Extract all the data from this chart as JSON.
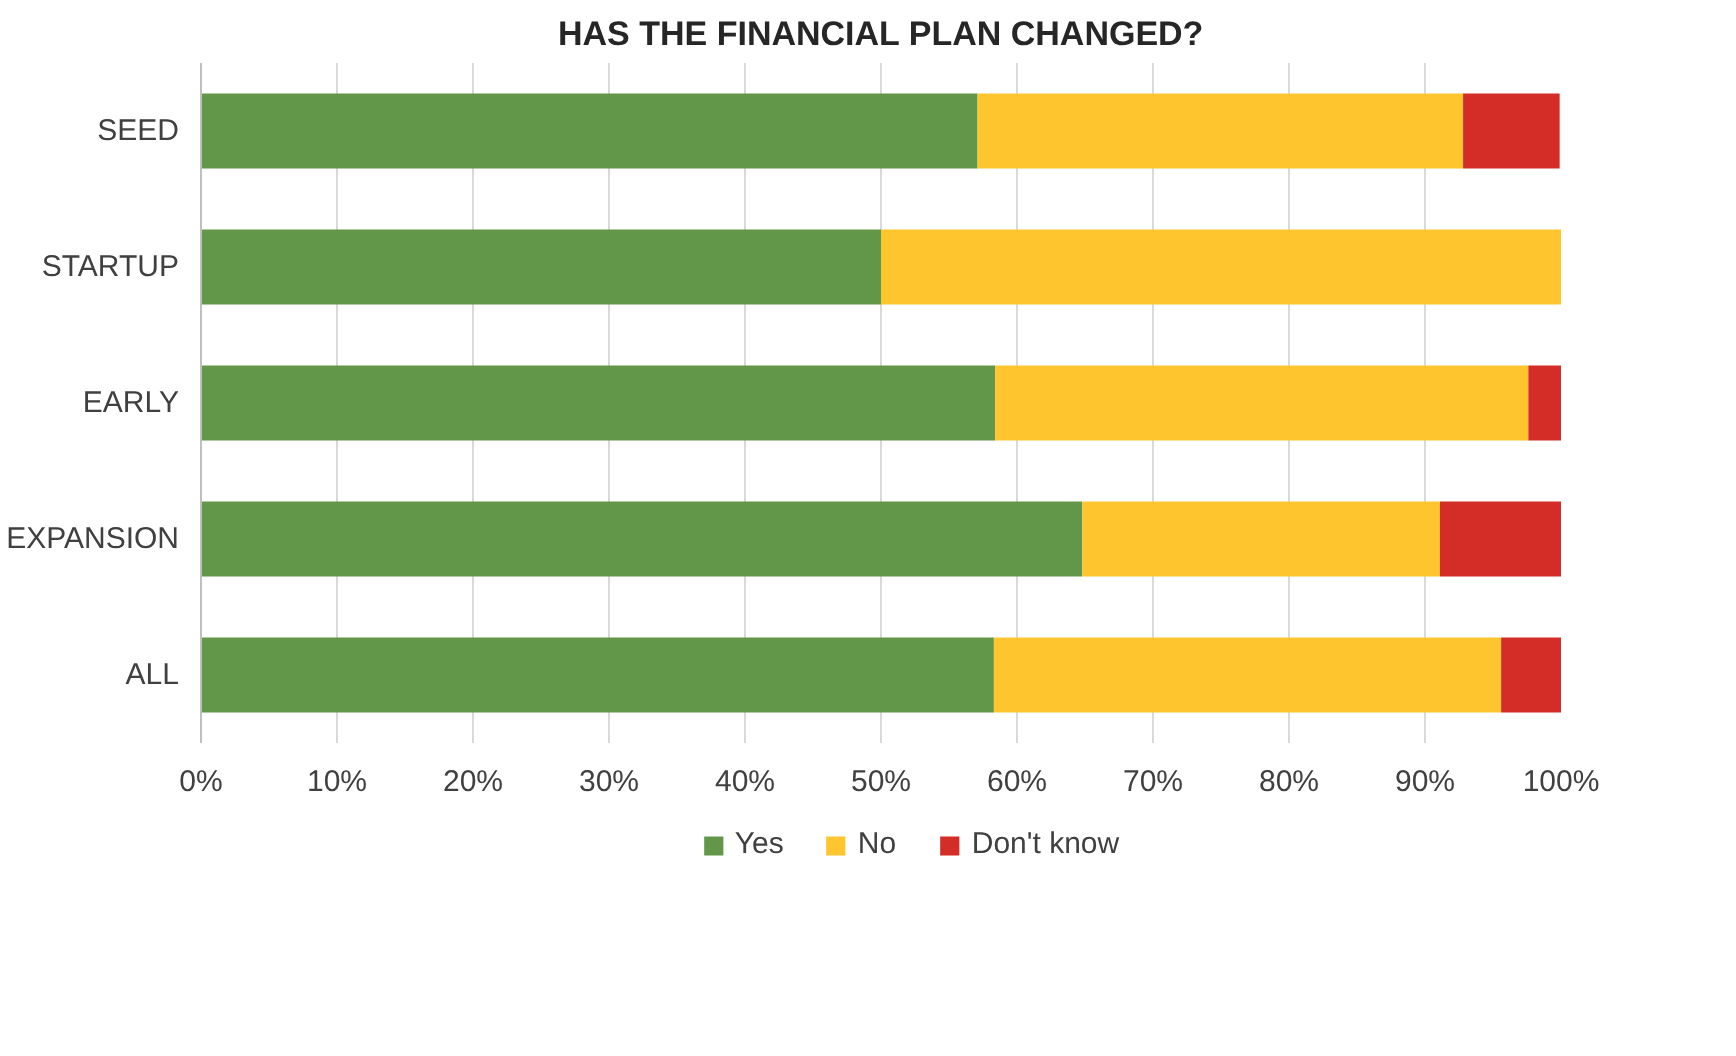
{
  "chart_data": {
    "type": "bar",
    "orientation": "horizontal",
    "stacked": true,
    "title": "HAS THE FINANCIAL PLAN CHANGED?",
    "categories": [
      "SEED",
      "STARTUP",
      "EARLY",
      "EXPANSION",
      "ALL"
    ],
    "series": [
      {
        "name": "Yes",
        "color": "#629749",
        "values": [
          57.1,
          50.0,
          58.4,
          64.8,
          58.3
        ]
      },
      {
        "name": "No",
        "color": "#fec52e",
        "values": [
          35.7,
          50.0,
          39.2,
          26.3,
          37.3
        ]
      },
      {
        "name": "Don't know",
        "color": "#d42d27",
        "values": [
          7.1,
          0.0,
          2.4,
          8.9,
          4.4
        ]
      }
    ],
    "xlim": [
      0,
      100
    ],
    "xticks": [
      {
        "value": 0,
        "label": "0%"
      },
      {
        "value": 10,
        "label": "10%"
      },
      {
        "value": 20,
        "label": "20%"
      },
      {
        "value": 30,
        "label": "30%"
      },
      {
        "value": 40,
        "label": "40%"
      },
      {
        "value": 50,
        "label": "50%"
      },
      {
        "value": 60,
        "label": "60%"
      },
      {
        "value": 70,
        "label": "70%"
      },
      {
        "value": 80,
        "label": "80%"
      },
      {
        "value": 90,
        "label": "90%"
      },
      {
        "value": 100,
        "label": "100%"
      }
    ],
    "grid": "x",
    "legend": "bottom"
  }
}
